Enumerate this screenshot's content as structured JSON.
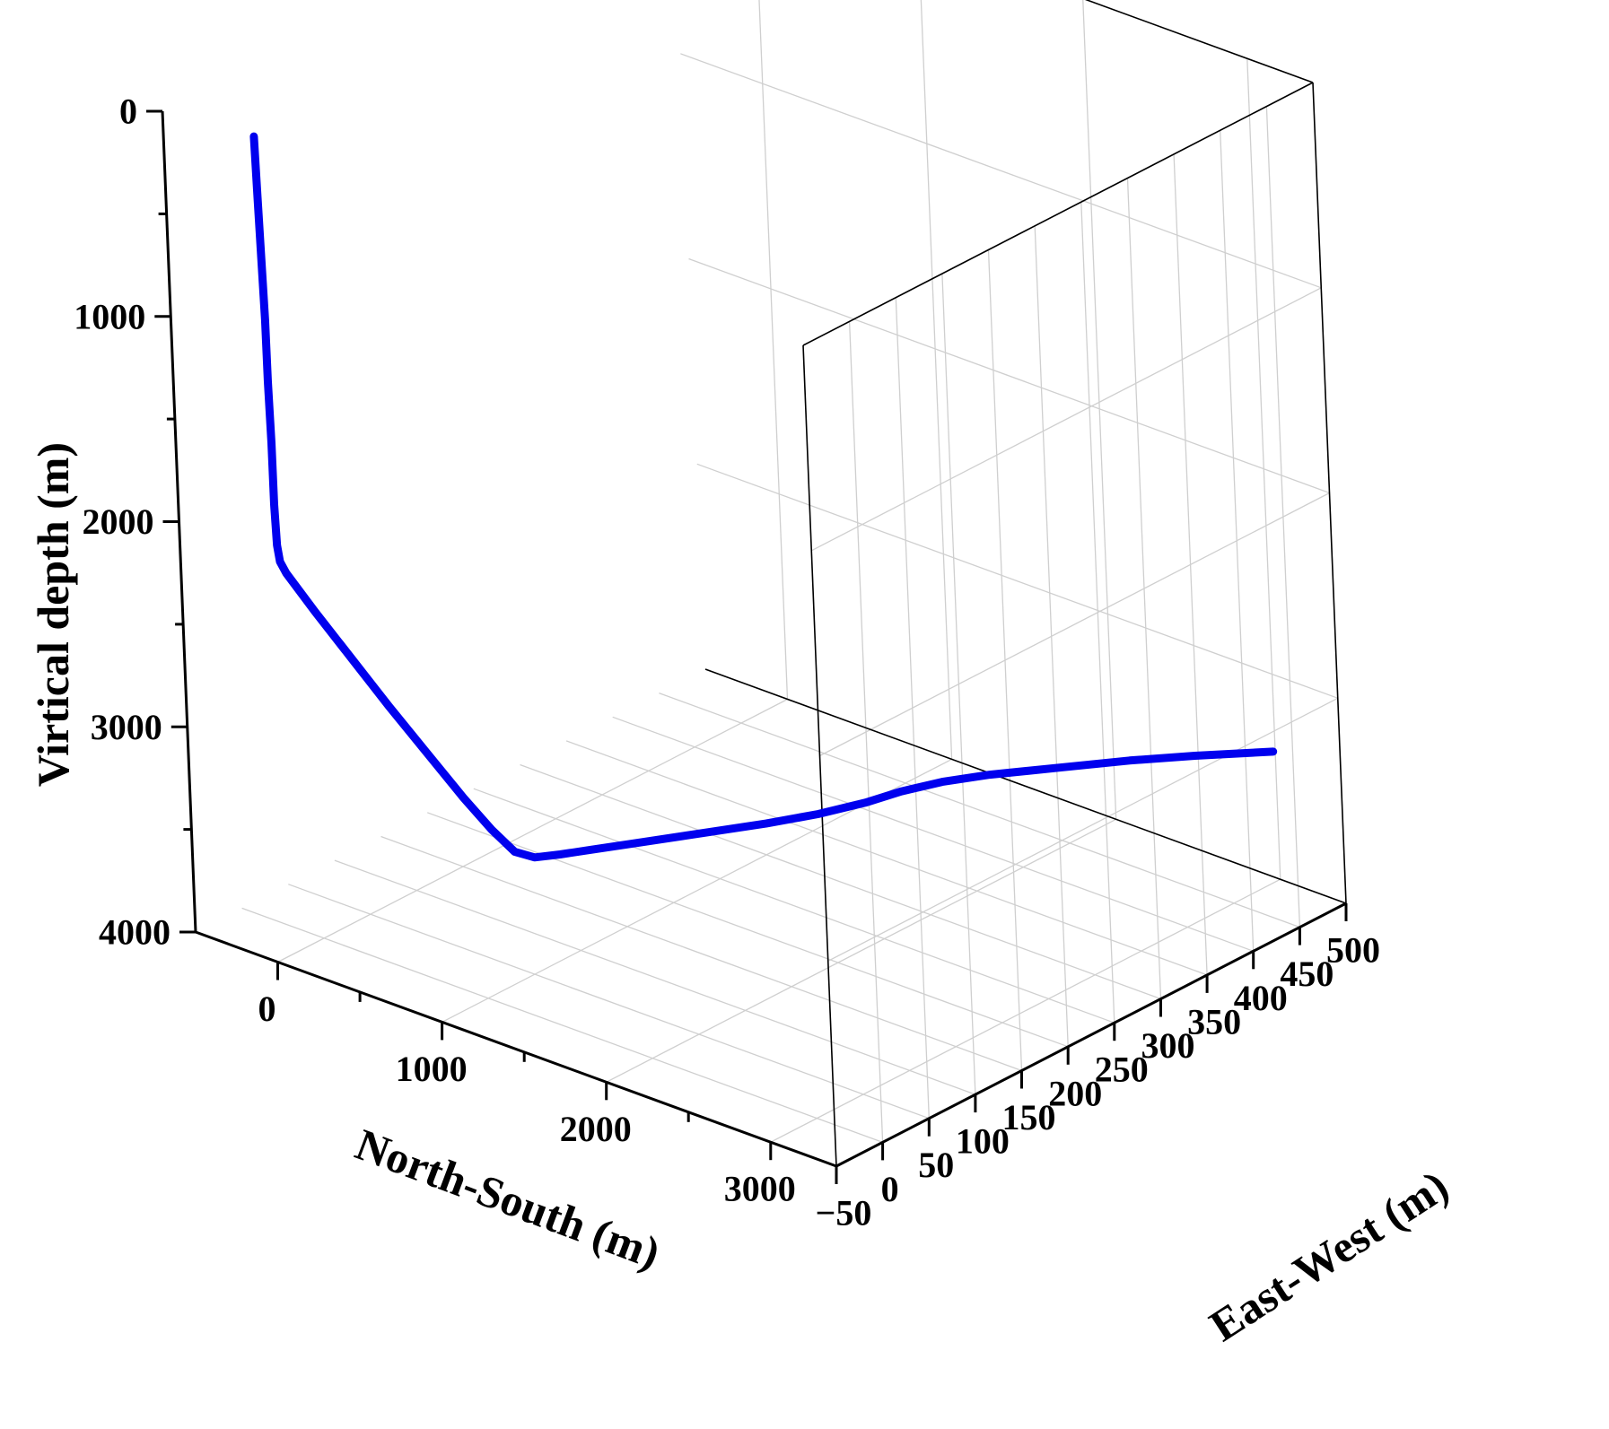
{
  "chart_data": {
    "type": "line3d",
    "axes": {
      "north_south": {
        "label": "North-South (m)",
        "range": [
          -500,
          3400
        ],
        "ticks": [
          {
            "value": 0,
            "label": "0"
          },
          {
            "value": 1000,
            "label": "1000"
          },
          {
            "value": 2000,
            "label": "2000"
          },
          {
            "value": 3000,
            "label": "3000"
          }
        ],
        "minor_ticks": [
          500,
          1500,
          2500
        ]
      },
      "east_west": {
        "label": "East-West (m)",
        "range": [
          -50,
          500
        ],
        "ticks": [
          {
            "value": -50,
            "label": "−50"
          },
          {
            "value": 0,
            "label": "0"
          },
          {
            "value": 50,
            "label": "50"
          },
          {
            "value": 100,
            "label": "100"
          },
          {
            "value": 150,
            "label": "150"
          },
          {
            "value": 200,
            "label": "200"
          },
          {
            "value": 250,
            "label": "250"
          },
          {
            "value": 300,
            "label": "300"
          },
          {
            "value": 350,
            "label": "350"
          },
          {
            "value": 400,
            "label": "400"
          },
          {
            "value": 450,
            "label": "450"
          },
          {
            "value": 500,
            "label": "500"
          }
        ]
      },
      "depth": {
        "label": "Virtical depth (m)",
        "range": [
          0,
          4000
        ],
        "inverted": true,
        "ticks": [
          {
            "value": 0,
            "label": "0"
          },
          {
            "value": 1000,
            "label": "1000"
          },
          {
            "value": 2000,
            "label": "2000"
          },
          {
            "value": 3000,
            "label": "3000"
          },
          {
            "value": 4000,
            "label": "4000"
          }
        ],
        "minor_ticks": [
          500,
          1500,
          2500,
          3500
        ]
      }
    },
    "grid": true,
    "series": [
      {
        "color": "#0000ee",
        "points": [
          {
            "ns": 0,
            "ew": -40,
            "depth": 0
          },
          {
            "ns": 2,
            "ew": -39,
            "depth": 300
          },
          {
            "ns": 4,
            "ew": -38,
            "depth": 600
          },
          {
            "ns": 6,
            "ew": -37,
            "depth": 900
          },
          {
            "ns": 8,
            "ew": -37,
            "depth": 1200
          },
          {
            "ns": 9,
            "ew": -36,
            "depth": 1500
          },
          {
            "ns": 10,
            "ew": -36,
            "depth": 1800
          },
          {
            "ns": 12,
            "ew": -35,
            "depth": 2000
          },
          {
            "ns": 20,
            "ew": -34,
            "depth": 2080
          },
          {
            "ns": 50,
            "ew": -33,
            "depth": 2130
          },
          {
            "ns": 200,
            "ew": -30,
            "depth": 2280
          },
          {
            "ns": 400,
            "ew": -27,
            "depth": 2460
          },
          {
            "ns": 600,
            "ew": -24,
            "depth": 2640
          },
          {
            "ns": 800,
            "ew": -21,
            "depth": 2810
          },
          {
            "ns": 1000,
            "ew": -18,
            "depth": 2980
          },
          {
            "ns": 1150,
            "ew": -15,
            "depth": 3100
          },
          {
            "ns": 1270,
            "ew": -12,
            "depth": 3180
          },
          {
            "ns": 1350,
            "ew": -5,
            "depth": 3200
          },
          {
            "ns": 1420,
            "ew": 10,
            "depth": 3200
          },
          {
            "ns": 1500,
            "ew": 30,
            "depth": 3200
          },
          {
            "ns": 1620,
            "ew": 60,
            "depth": 3200
          },
          {
            "ns": 1780,
            "ew": 100,
            "depth": 3200
          },
          {
            "ns": 1940,
            "ew": 140,
            "depth": 3200
          },
          {
            "ns": 2060,
            "ew": 175,
            "depth": 3200
          },
          {
            "ns": 2150,
            "ew": 210,
            "depth": 3200
          },
          {
            "ns": 2200,
            "ew": 240,
            "depth": 3200
          },
          {
            "ns": 2280,
            "ew": 270,
            "depth": 3200
          },
          {
            "ns": 2400,
            "ew": 300,
            "depth": 3200
          },
          {
            "ns": 2600,
            "ew": 340,
            "depth": 3200
          },
          {
            "ns": 2800,
            "ew": 380,
            "depth": 3200
          },
          {
            "ns": 3000,
            "ew": 415,
            "depth": 3200
          },
          {
            "ns": 3250,
            "ew": 455,
            "depth": 3200
          }
        ]
      }
    ]
  }
}
